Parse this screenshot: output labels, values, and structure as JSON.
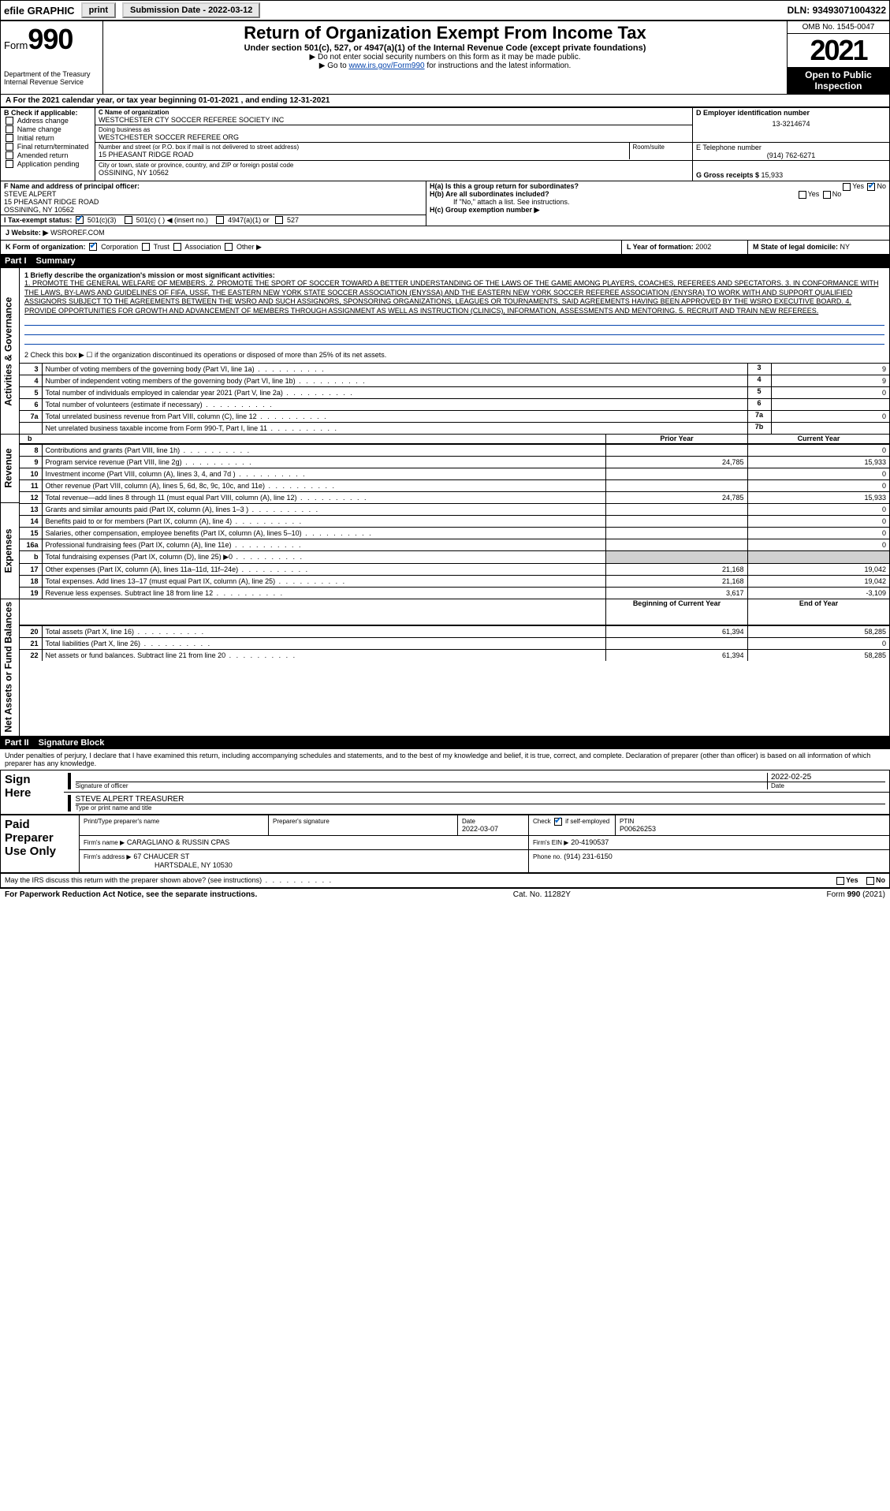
{
  "topbar": {
    "efile": "efile GRAPHIC",
    "print": "print",
    "submission_label": "Submission Date - ",
    "submission_date": "2022-03-12",
    "dln_label": "DLN: ",
    "dln": "93493071004322"
  },
  "header": {
    "form_word": "Form",
    "form_num": "990",
    "dept": "Department of the Treasury",
    "irs": "Internal Revenue Service",
    "title": "Return of Organization Exempt From Income Tax",
    "subtitle": "Under section 501(c), 527, or 4947(a)(1) of the Internal Revenue Code (except private foundations)",
    "instr1": "▶ Do not enter social security numbers on this form as it may be made public.",
    "instr2_pre": "▶ Go to ",
    "instr2_link": "www.irs.gov/Form990",
    "instr2_post": " for instructions and the latest information.",
    "omb": "OMB No. 1545-0047",
    "year": "2021",
    "open": "Open to Public Inspection"
  },
  "taxyear": {
    "line": "A For the 2021 calendar year, or tax year beginning 01-01-2021   , and ending 12-31-2021"
  },
  "boxB": {
    "label": "B Check if applicable:",
    "items": [
      "Address change",
      "Name change",
      "Initial return",
      "Final return/terminated",
      "Amended return",
      "Application pending"
    ]
  },
  "boxC": {
    "label": "C Name of organization",
    "name": "WESTCHESTER CTY SOCCER REFEREE SOCIETY INC",
    "dba_label": "Doing business as",
    "dba": "WESTCHESTER SOCCER REFEREE ORG",
    "addr_label": "Number and street (or P.O. box if mail is not delivered to street address)",
    "room_label": "Room/suite",
    "addr": "15 PHEASANT RIDGE ROAD",
    "city_label": "City or town, state or province, country, and ZIP or foreign postal code",
    "city": "OSSINING, NY  10562"
  },
  "boxD": {
    "label": "D Employer identification number",
    "val": "13-3214674"
  },
  "boxE": {
    "label": "E Telephone number",
    "val": "(914) 762-6271"
  },
  "boxG": {
    "label": "G Gross receipts $ ",
    "val": "15,933"
  },
  "boxF": {
    "label": "F  Name and address of principal officer:",
    "name": "STEVE ALPERT",
    "addr1": "15 PHEASANT RIDGE ROAD",
    "addr2": "OSSINING, NY  10562"
  },
  "boxH": {
    "ha": "H(a)  Is this a group return for subordinates?",
    "hb": "H(b)  Are all subordinates included?",
    "hb_note": "If \"No,\" attach a list. See instructions.",
    "hc": "H(c)  Group exemption number ▶",
    "yes": "Yes",
    "no": "No"
  },
  "boxI": {
    "label": "I   Tax-exempt status:",
    "o1": "501(c)(3)",
    "o2": "501(c) (  ) ◀ (insert no.)",
    "o3": "4947(a)(1) or",
    "o4": "527"
  },
  "boxJ": {
    "label": "J   Website: ▶",
    "val": " WSROREF.COM"
  },
  "boxK": {
    "label": "K Form of organization:",
    "o1": "Corporation",
    "o2": "Trust",
    "o3": "Association",
    "o4": "Other ▶"
  },
  "boxL": {
    "label": "L Year of formation: ",
    "val": "2002"
  },
  "boxM": {
    "label": "M State of legal domicile: ",
    "val": "NY"
  },
  "part1": {
    "label": "Part I",
    "title": "Summary"
  },
  "summary": {
    "l1_label": "1   Briefly describe the organization's mission or most significant activities:",
    "l1_text": "1. PROMOTE THE GENERAL WELFARE OF MEMBERS. 2. PROMOTE THE SPORT OF SOCCER TOWARD A BETTER UNDERSTANDING OF THE LAWS OF THE GAME AMONG PLAYERS, COACHES, REFEREES AND SPECTATORS. 3. IN CONFORMANCE WITH THE LAWS, BY-LAWS AND GUIDELINES OF FIFA, USSF, THE EASTERN NEW YORK STATE SOCCER ASSOCIATION (ENYSSA) AND THE EASTERN NEW YORK SOCCER REFEREE ASSOCIATION (ENYSRA) TO WORK WITH AND SUPPORT QUALIFIED ASSIGNORS SUBJECT TO THE AGREEMENTS BETWEEN THE WSRO AND SUCH ASSIGNORS, SPONSORING ORGANIZATIONS, LEAGUES OR TOURNAMENTS, SAID AGREEMENTS HAVING BEEN APPROVED BY THE WSRO EXECUTIVE BOARD. 4. PROVIDE OPPORTUNITIES FOR GROWTH AND ADVANCEMENT OF MEMBERS THROUGH ASSIGNMENT AS WELL AS INSTRUCTION (CLINICS), INFORMATION, ASSESSMENTS AND MENTORING. 5. RECRUIT AND TRAIN NEW REFEREES.",
    "l2": "2   Check this box ▶ ☐  if the organization discontinued its operations or disposed of more than 25% of its net assets.",
    "rows_ag": [
      {
        "n": "3",
        "d": "Number of voting members of the governing body (Part VI, line 1a)",
        "rn": "3",
        "v": "9"
      },
      {
        "n": "4",
        "d": "Number of independent voting members of the governing body (Part VI, line 1b)",
        "rn": "4",
        "v": "9"
      },
      {
        "n": "5",
        "d": "Total number of individuals employed in calendar year 2021 (Part V, line 2a)",
        "rn": "5",
        "v": "0"
      },
      {
        "n": "6",
        "d": "Total number of volunteers (estimate if necessary)",
        "rn": "6",
        "v": ""
      },
      {
        "n": "7a",
        "d": "Total unrelated business revenue from Part VIII, column (C), line 12",
        "rn": "7a",
        "v": "0"
      },
      {
        "n": "",
        "d": "Net unrelated business taxable income from Form 990-T, Part I, line 11",
        "rn": "7b",
        "v": ""
      }
    ],
    "col_prior": "Prior Year",
    "col_current": "Current Year",
    "rows_rev": [
      {
        "n": "8",
        "d": "Contributions and grants (Part VIII, line 1h)",
        "p": "",
        "c": "0"
      },
      {
        "n": "9",
        "d": "Program service revenue (Part VIII, line 2g)",
        "p": "24,785",
        "c": "15,933"
      },
      {
        "n": "10",
        "d": "Investment income (Part VIII, column (A), lines 3, 4, and 7d )",
        "p": "",
        "c": "0"
      },
      {
        "n": "11",
        "d": "Other revenue (Part VIII, column (A), lines 5, 6d, 8c, 9c, 10c, and 11e)",
        "p": "",
        "c": "0"
      },
      {
        "n": "12",
        "d": "Total revenue—add lines 8 through 11 (must equal Part VIII, column (A), line 12)",
        "p": "24,785",
        "c": "15,933"
      }
    ],
    "rows_exp": [
      {
        "n": "13",
        "d": "Grants and similar amounts paid (Part IX, column (A), lines 1–3 )",
        "p": "",
        "c": "0"
      },
      {
        "n": "14",
        "d": "Benefits paid to or for members (Part IX, column (A), line 4)",
        "p": "",
        "c": "0"
      },
      {
        "n": "15",
        "d": "Salaries, other compensation, employee benefits (Part IX, column (A), lines 5–10)",
        "p": "",
        "c": "0"
      },
      {
        "n": "16a",
        "d": "Professional fundraising fees (Part IX, column (A), line 11e)",
        "p": "",
        "c": "0"
      },
      {
        "n": "b",
        "d": "Total fundraising expenses (Part IX, column (D), line 25) ▶0",
        "p": "GRAY",
        "c": "GRAY"
      },
      {
        "n": "17",
        "d": "Other expenses (Part IX, column (A), lines 11a–11d, 11f–24e)",
        "p": "21,168",
        "c": "19,042"
      },
      {
        "n": "18",
        "d": "Total expenses. Add lines 13–17 (must equal Part IX, column (A), line 25)",
        "p": "21,168",
        "c": "19,042"
      },
      {
        "n": "19",
        "d": "Revenue less expenses. Subtract line 18 from line 12",
        "p": "3,617",
        "c": "-3,109"
      }
    ],
    "col_begin": "Beginning of Current Year",
    "col_end": "End of Year",
    "rows_na": [
      {
        "n": "20",
        "d": "Total assets (Part X, line 16)",
        "p": "61,394",
        "c": "58,285"
      },
      {
        "n": "21",
        "d": "Total liabilities (Part X, line 26)",
        "p": "",
        "c": "0"
      },
      {
        "n": "22",
        "d": "Net assets or fund balances. Subtract line 21 from line 20",
        "p": "61,394",
        "c": "58,285"
      }
    ],
    "vlabels": {
      "ag": "Activities & Governance",
      "rev": "Revenue",
      "exp": "Expenses",
      "na": "Net Assets or Fund Balances"
    }
  },
  "part2": {
    "label": "Part II",
    "title": "Signature Block"
  },
  "sigtext": "Under penalties of perjury, I declare that I have examined this return, including accompanying schedules and statements, and to the best of my knowledge and belief, it is true, correct, and complete. Declaration of preparer (other than officer) is based on all information of which preparer has any knowledge.",
  "sign": {
    "here": "Sign Here",
    "sig_label": "Signature of officer",
    "date": "2022-02-25",
    "date_label": "Date",
    "name": "STEVE ALPERT TREASURER",
    "name_label": "Type or print name and title"
  },
  "paid": {
    "title": "Paid Preparer Use Only",
    "h1": "Print/Type preparer's name",
    "h2": "Preparer's signature",
    "h3": "Date",
    "h4_pre": "Check",
    "h4_post": "if self-employed",
    "h5": "PTIN",
    "date": "2022-03-07",
    "ptin": "P00626253",
    "firm_label": "Firm's name   ▶",
    "firm": "CARAGLIANO & RUSSIN CPAS",
    "ein_label": "Firm's EIN ▶",
    "ein": "20-4190537",
    "addr_label": "Firm's address ▶",
    "addr1": "67 CHAUCER ST",
    "addr2": "HARTSDALE, NY  10530",
    "phone_label": "Phone no.",
    "phone": "(914) 231-6150"
  },
  "discuss": {
    "q": "May the IRS discuss this return with the preparer shown above? (see instructions)",
    "yes": "Yes",
    "no": "No"
  },
  "footer": {
    "left": "For Paperwork Reduction Act Notice, see the separate instructions.",
    "mid": "Cat. No. 11282Y",
    "right_pre": "Form ",
    "right_b": "990",
    "right_post": " (2021)"
  }
}
